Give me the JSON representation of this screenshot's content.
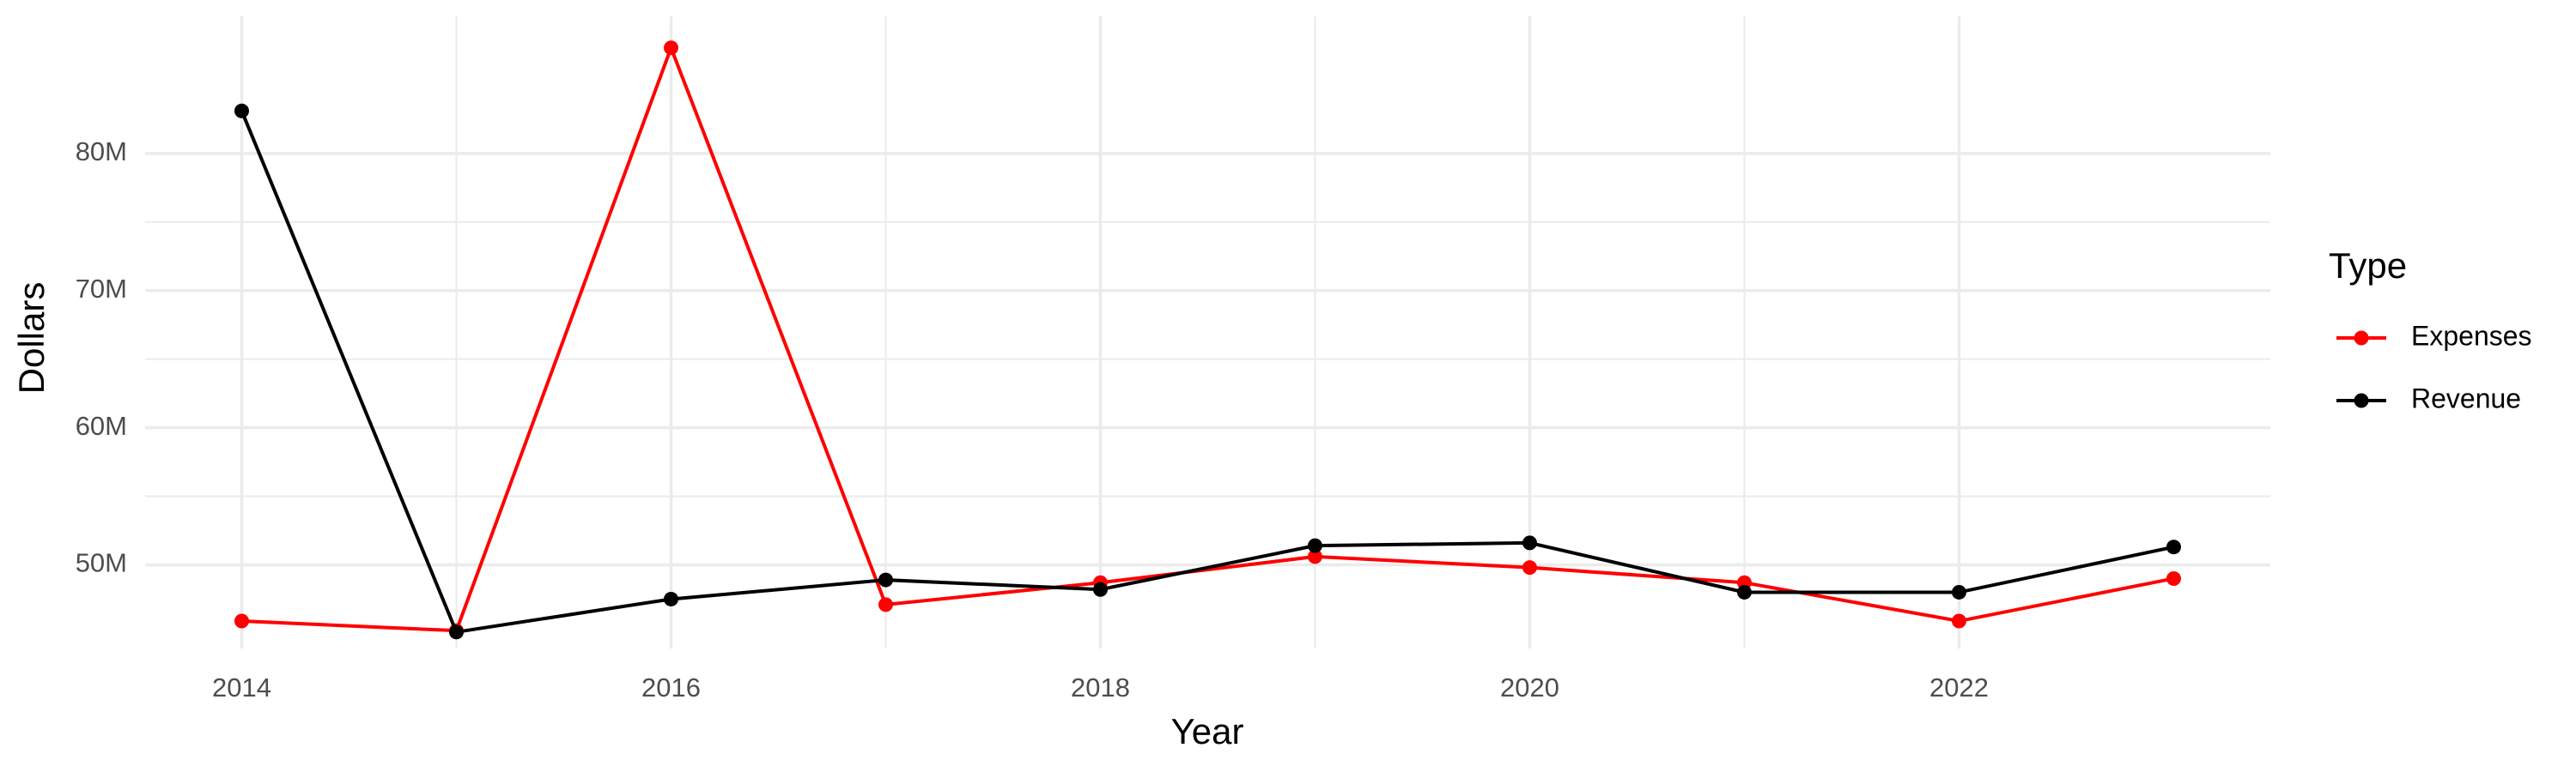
{
  "chart_data": {
    "type": "line",
    "x_label": "Year",
    "y_label": "Dollars",
    "legend_title": "Type",
    "legend_position": "right",
    "grid": true,
    "x": [
      2014,
      2015,
      2016,
      2017,
      2018,
      2019,
      2020,
      2021,
      2022,
      2023
    ],
    "series": [
      {
        "name": "Expenses",
        "color": "#ff0000",
        "values": [
          45900000,
          45200000,
          87700000,
          47100000,
          48700000,
          50600000,
          49800000,
          48700000,
          45900000,
          49000000
        ]
      },
      {
        "name": "Revenue",
        "color": "#000000",
        "values": [
          83100000,
          45100000,
          47500000,
          48900000,
          48200000,
          51400000,
          51600000,
          48000000,
          48000000,
          51300000
        ]
      }
    ],
    "xlim": [
      2013.55,
      2023.45
    ],
    "xticks": [
      2014,
      2016,
      2018,
      2020,
      2022
    ],
    "ylim": [
      43900000,
      90000000
    ],
    "yticks": [
      {
        "value": 50000000,
        "label": "50M"
      },
      {
        "value": 60000000,
        "label": "60M"
      },
      {
        "value": 70000000,
        "label": "70M"
      },
      {
        "value": 80000000,
        "label": "80M"
      }
    ]
  }
}
